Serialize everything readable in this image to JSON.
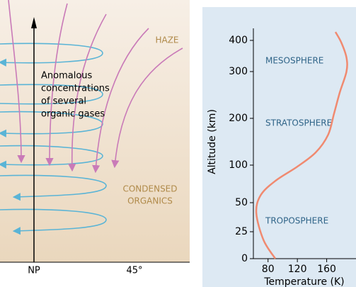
{
  "diagram": {
    "labels": [
      "HAZE",
      "CONDENSED",
      "ORGANICS"
    ],
    "note": [
      "Anomalous",
      "concentrations",
      "of several",
      "organic gases"
    ],
    "axis_labels": [
      "NP",
      "45°"
    ]
  },
  "chart_data": {
    "type": "line",
    "x_label": "Temperature (K)",
    "y_label": "Altitude (km)",
    "annotations": [
      "MESOSPHERE",
      "STRATOSPHERE",
      "TROPOSPHERE"
    ],
    "x": [
      90,
      74,
      64,
      70,
      90,
      120,
      145,
      162,
      170,
      178,
      187,
      187,
      180,
      172
    ],
    "values": [
      0,
      17,
      41,
      60,
      79,
      98,
      127,
      165,
      210,
      256,
      300,
      345,
      393,
      427
    ],
    "color": "#f08a70",
    "xlim": [
      60,
      200
    ],
    "xticks": [
      80,
      120,
      160
    ],
    "ylim": [
      0,
      427
    ],
    "yticks": [
      0,
      25,
      50,
      100,
      200,
      300,
      400
    ]
  }
}
